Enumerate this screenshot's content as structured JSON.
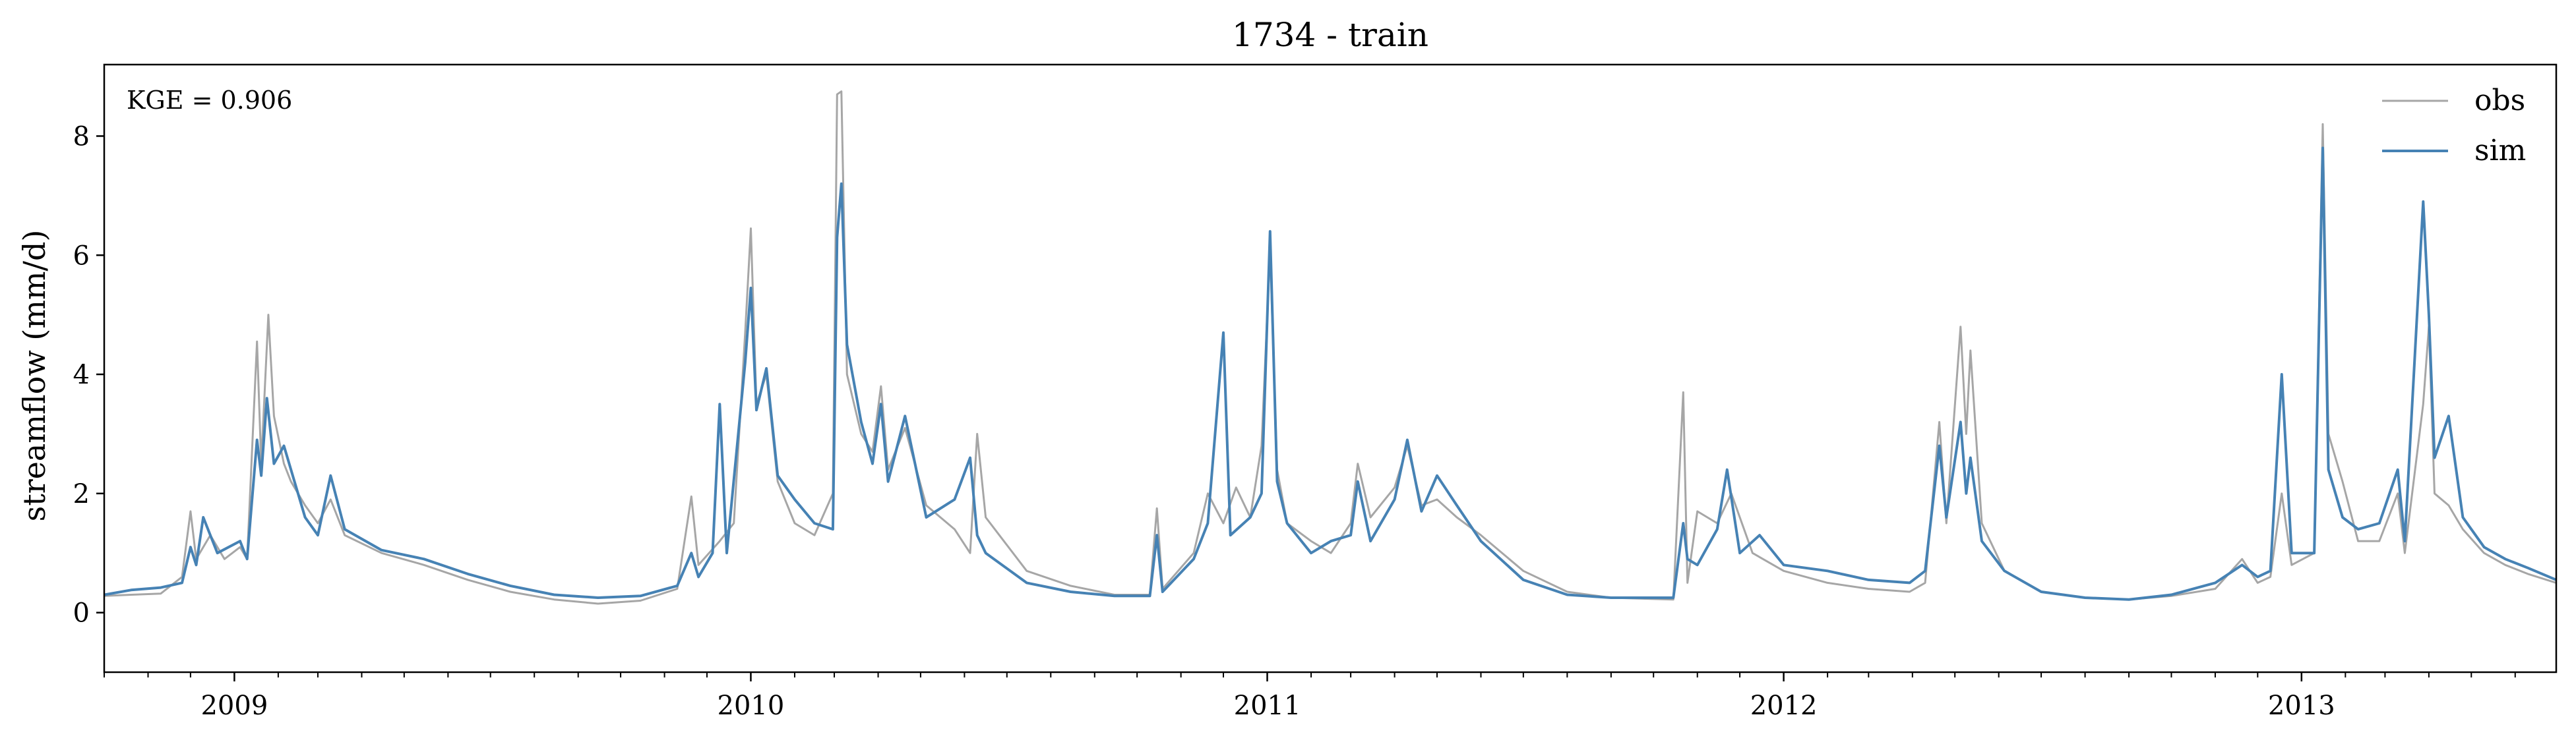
{
  "chart_data": {
    "type": "line",
    "title": "1734 - train",
    "xlabel": "",
    "ylabel": "streamflow (mm/d)",
    "annotation": "KGE = 0.906",
    "xlim": [
      "2008-10-01",
      "2013-06-30"
    ],
    "ylim": [
      -1,
      9.2
    ],
    "yticks": [
      0,
      2,
      4,
      6,
      8
    ],
    "xtick_labels": [
      {
        "date": "2009-01-01",
        "label": "2009"
      },
      {
        "date": "2010-01-01",
        "label": "2010"
      },
      {
        "date": "2011-01-01",
        "label": "2011"
      },
      {
        "date": "2012-01-01",
        "label": "2012"
      },
      {
        "date": "2013-01-01",
        "label": "2013"
      }
    ],
    "grid": false,
    "legend_position": "top-right",
    "series": [
      {
        "name": "obs",
        "color": "#a6a6a6",
        "points": [
          [
            "2008-10-01",
            0.28
          ],
          [
            "2008-10-20",
            0.3
          ],
          [
            "2008-11-10",
            0.32
          ],
          [
            "2008-11-25",
            0.6
          ],
          [
            "2008-12-01",
            1.7
          ],
          [
            "2008-12-05",
            0.9
          ],
          [
            "2008-12-15",
            1.3
          ],
          [
            "2008-12-25",
            0.9
          ],
          [
            "2009-01-05",
            1.1
          ],
          [
            "2009-01-10",
            0.9
          ],
          [
            "2009-01-17",
            4.55
          ],
          [
            "2009-01-20",
            2.5
          ],
          [
            "2009-01-25",
            5.0
          ],
          [
            "2009-01-29",
            3.3
          ],
          [
            "2009-02-05",
            2.5
          ],
          [
            "2009-02-10",
            2.2
          ],
          [
            "2009-02-20",
            1.8
          ],
          [
            "2009-03-01",
            1.5
          ],
          [
            "2009-03-10",
            1.9
          ],
          [
            "2009-03-20",
            1.3
          ],
          [
            "2009-04-15",
            1.0
          ],
          [
            "2009-05-15",
            0.8
          ],
          [
            "2009-06-15",
            0.55
          ],
          [
            "2009-07-15",
            0.35
          ],
          [
            "2009-08-15",
            0.22
          ],
          [
            "2009-09-15",
            0.15
          ],
          [
            "2009-10-15",
            0.2
          ],
          [
            "2009-11-10",
            0.4
          ],
          [
            "2009-11-20",
            1.95
          ],
          [
            "2009-11-25",
            0.8
          ],
          [
            "2009-12-10",
            1.2
          ],
          [
            "2009-12-20",
            1.5
          ],
          [
            "2009-12-28",
            4.7
          ],
          [
            "2010-01-01",
            6.45
          ],
          [
            "2010-01-05",
            3.5
          ],
          [
            "2010-01-12",
            4.0
          ],
          [
            "2010-01-20",
            2.2
          ],
          [
            "2010-02-01",
            1.5
          ],
          [
            "2010-02-15",
            1.3
          ],
          [
            "2010-02-28",
            2.0
          ],
          [
            "2010-03-03",
            8.7
          ],
          [
            "2010-03-06",
            8.75
          ],
          [
            "2010-03-10",
            4.0
          ],
          [
            "2010-03-20",
            3.0
          ],
          [
            "2010-03-28",
            2.7
          ],
          [
            "2010-04-03",
            3.8
          ],
          [
            "2010-04-08",
            2.4
          ],
          [
            "2010-04-20",
            3.1
          ],
          [
            "2010-05-05",
            1.8
          ],
          [
            "2010-05-25",
            1.4
          ],
          [
            "2010-06-05",
            1.0
          ],
          [
            "2010-06-10",
            3.0
          ],
          [
            "2010-06-16",
            1.6
          ],
          [
            "2010-07-15",
            0.7
          ],
          [
            "2010-08-15",
            0.45
          ],
          [
            "2010-09-15",
            0.3
          ],
          [
            "2010-10-10",
            0.3
          ],
          [
            "2010-10-15",
            1.75
          ],
          [
            "2010-10-19",
            0.4
          ],
          [
            "2010-11-10",
            1.0
          ],
          [
            "2010-11-20",
            2.0
          ],
          [
            "2010-12-01",
            1.5
          ],
          [
            "2010-12-10",
            2.1
          ],
          [
            "2010-12-20",
            1.6
          ],
          [
            "2010-12-28",
            2.8
          ],
          [
            "2011-01-03",
            6.1
          ],
          [
            "2011-01-08",
            2.4
          ],
          [
            "2011-01-15",
            1.5
          ],
          [
            "2011-02-01",
            1.2
          ],
          [
            "2011-02-15",
            1.0
          ],
          [
            "2011-03-01",
            1.5
          ],
          [
            "2011-03-06",
            2.5
          ],
          [
            "2011-03-15",
            1.6
          ],
          [
            "2011-04-01",
            2.1
          ],
          [
            "2011-04-10",
            2.8
          ],
          [
            "2011-04-20",
            1.8
          ],
          [
            "2011-05-01",
            1.9
          ],
          [
            "2011-05-15",
            1.6
          ],
          [
            "2011-06-01",
            1.3
          ],
          [
            "2011-07-01",
            0.7
          ],
          [
            "2011-08-01",
            0.35
          ],
          [
            "2011-09-01",
            0.25
          ],
          [
            "2011-10-15",
            0.22
          ],
          [
            "2011-10-22",
            3.7
          ],
          [
            "2011-10-25",
            0.5
          ],
          [
            "2011-11-01",
            1.7
          ],
          [
            "2011-11-15",
            1.5
          ],
          [
            "2011-11-25",
            2.0
          ],
          [
            "2011-12-10",
            1.0
          ],
          [
            "2012-01-01",
            0.7
          ],
          [
            "2012-02-01",
            0.5
          ],
          [
            "2012-03-01",
            0.4
          ],
          [
            "2012-03-30",
            0.35
          ],
          [
            "2012-04-10",
            0.5
          ],
          [
            "2012-04-20",
            3.2
          ],
          [
            "2012-04-25",
            1.5
          ],
          [
            "2012-05-05",
            4.8
          ],
          [
            "2012-05-09",
            3.0
          ],
          [
            "2012-05-12",
            4.4
          ],
          [
            "2012-05-20",
            1.5
          ],
          [
            "2012-06-05",
            0.7
          ],
          [
            "2012-07-01",
            0.35
          ],
          [
            "2012-08-01",
            0.25
          ],
          [
            "2012-09-01",
            0.22
          ],
          [
            "2012-10-01",
            0.28
          ],
          [
            "2012-11-01",
            0.4
          ],
          [
            "2012-11-20",
            0.9
          ],
          [
            "2012-12-01",
            0.5
          ],
          [
            "2012-12-10",
            0.6
          ],
          [
            "2012-12-18",
            2.0
          ],
          [
            "2012-12-25",
            0.8
          ],
          [
            "2013-01-10",
            1.0
          ],
          [
            "2013-01-16",
            8.2
          ],
          [
            "2013-01-20",
            3.0
          ],
          [
            "2013-01-30",
            2.2
          ],
          [
            "2013-02-10",
            1.2
          ],
          [
            "2013-02-25",
            1.2
          ],
          [
            "2013-03-10",
            2.0
          ],
          [
            "2013-03-15",
            1.0
          ],
          [
            "2013-03-28",
            3.5
          ],
          [
            "2013-04-01",
            4.8
          ],
          [
            "2013-04-05",
            2.0
          ],
          [
            "2013-04-15",
            1.8
          ],
          [
            "2013-04-25",
            1.4
          ],
          [
            "2013-05-10",
            1.0
          ],
          [
            "2013-05-25",
            0.8
          ],
          [
            "2013-06-10",
            0.65
          ],
          [
            "2013-06-30",
            0.5
          ]
        ]
      },
      {
        "name": "sim",
        "color": "#4682b4",
        "points": [
          [
            "2008-10-01",
            0.3
          ],
          [
            "2008-10-20",
            0.38
          ],
          [
            "2008-11-10",
            0.42
          ],
          [
            "2008-11-25",
            0.5
          ],
          [
            "2008-12-01",
            1.1
          ],
          [
            "2008-12-05",
            0.8
          ],
          [
            "2008-12-10",
            1.6
          ],
          [
            "2008-12-20",
            1.0
          ],
          [
            "2009-01-05",
            1.2
          ],
          [
            "2009-01-10",
            0.9
          ],
          [
            "2009-01-17",
            2.9
          ],
          [
            "2009-01-20",
            2.3
          ],
          [
            "2009-01-24",
            3.6
          ],
          [
            "2009-01-29",
            2.5
          ],
          [
            "2009-02-05",
            2.8
          ],
          [
            "2009-02-10",
            2.4
          ],
          [
            "2009-02-20",
            1.6
          ],
          [
            "2009-03-01",
            1.3
          ],
          [
            "2009-03-10",
            2.3
          ],
          [
            "2009-03-20",
            1.4
          ],
          [
            "2009-04-15",
            1.05
          ],
          [
            "2009-05-15",
            0.9
          ],
          [
            "2009-06-15",
            0.65
          ],
          [
            "2009-07-15",
            0.45
          ],
          [
            "2009-08-15",
            0.3
          ],
          [
            "2009-09-15",
            0.25
          ],
          [
            "2009-10-15",
            0.28
          ],
          [
            "2009-11-10",
            0.45
          ],
          [
            "2009-11-20",
            1.0
          ],
          [
            "2009-11-25",
            0.6
          ],
          [
            "2009-12-05",
            1.0
          ],
          [
            "2009-12-10",
            3.5
          ],
          [
            "2009-12-15",
            1.0
          ],
          [
            "2009-12-28",
            4.2
          ],
          [
            "2010-01-01",
            5.45
          ],
          [
            "2010-01-05",
            3.4
          ],
          [
            "2010-01-12",
            4.1
          ],
          [
            "2010-01-20",
            2.3
          ],
          [
            "2010-02-01",
            1.9
          ],
          [
            "2010-02-15",
            1.5
          ],
          [
            "2010-02-28",
            1.4
          ],
          [
            "2010-03-03",
            6.3
          ],
          [
            "2010-03-06",
            7.2
          ],
          [
            "2010-03-10",
            4.5
          ],
          [
            "2010-03-20",
            3.2
          ],
          [
            "2010-03-28",
            2.5
          ],
          [
            "2010-04-03",
            3.5
          ],
          [
            "2010-04-08",
            2.2
          ],
          [
            "2010-04-20",
            3.3
          ],
          [
            "2010-05-05",
            1.6
          ],
          [
            "2010-05-25",
            1.9
          ],
          [
            "2010-06-05",
            2.6
          ],
          [
            "2010-06-10",
            1.3
          ],
          [
            "2010-06-16",
            1.0
          ],
          [
            "2010-07-15",
            0.5
          ],
          [
            "2010-08-15",
            0.35
          ],
          [
            "2010-09-15",
            0.28
          ],
          [
            "2010-10-10",
            0.28
          ],
          [
            "2010-10-15",
            1.3
          ],
          [
            "2010-10-19",
            0.35
          ],
          [
            "2010-11-10",
            0.9
          ],
          [
            "2010-11-20",
            1.5
          ],
          [
            "2010-12-01",
            4.7
          ],
          [
            "2010-12-06",
            1.3
          ],
          [
            "2010-12-20",
            1.6
          ],
          [
            "2010-12-28",
            2.0
          ],
          [
            "2011-01-03",
            6.4
          ],
          [
            "2011-01-08",
            2.2
          ],
          [
            "2011-01-15",
            1.5
          ],
          [
            "2011-02-01",
            1.0
          ],
          [
            "2011-02-15",
            1.2
          ],
          [
            "2011-03-01",
            1.3
          ],
          [
            "2011-03-06",
            2.2
          ],
          [
            "2011-03-15",
            1.2
          ],
          [
            "2011-04-01",
            1.9
          ],
          [
            "2011-04-10",
            2.9
          ],
          [
            "2011-04-20",
            1.7
          ],
          [
            "2011-05-01",
            2.3
          ],
          [
            "2011-05-15",
            1.8
          ],
          [
            "2011-06-01",
            1.2
          ],
          [
            "2011-07-01",
            0.55
          ],
          [
            "2011-08-01",
            0.3
          ],
          [
            "2011-09-01",
            0.25
          ],
          [
            "2011-10-15",
            0.25
          ],
          [
            "2011-10-22",
            1.5
          ],
          [
            "2011-10-25",
            0.9
          ],
          [
            "2011-11-01",
            0.8
          ],
          [
            "2011-11-15",
            1.4
          ],
          [
            "2011-11-22",
            2.4
          ],
          [
            "2011-12-01",
            1.0
          ],
          [
            "2011-12-15",
            1.3
          ],
          [
            "2012-01-01",
            0.8
          ],
          [
            "2012-02-01",
            0.7
          ],
          [
            "2012-03-01",
            0.55
          ],
          [
            "2012-03-30",
            0.5
          ],
          [
            "2012-04-10",
            0.7
          ],
          [
            "2012-04-20",
            2.8
          ],
          [
            "2012-04-25",
            1.6
          ],
          [
            "2012-05-05",
            3.2
          ],
          [
            "2012-05-09",
            2.0
          ],
          [
            "2012-05-12",
            2.6
          ],
          [
            "2012-05-20",
            1.2
          ],
          [
            "2012-06-05",
            0.7
          ],
          [
            "2012-07-01",
            0.35
          ],
          [
            "2012-08-01",
            0.25
          ],
          [
            "2012-09-01",
            0.22
          ],
          [
            "2012-10-01",
            0.3
          ],
          [
            "2012-11-01",
            0.5
          ],
          [
            "2012-11-20",
            0.8
          ],
          [
            "2012-12-01",
            0.6
          ],
          [
            "2012-12-10",
            0.7
          ],
          [
            "2012-12-18",
            4.0
          ],
          [
            "2012-12-25",
            1.0
          ],
          [
            "2013-01-10",
            1.0
          ],
          [
            "2013-01-16",
            7.8
          ],
          [
            "2013-01-20",
            2.4
          ],
          [
            "2013-01-30",
            1.6
          ],
          [
            "2013-02-10",
            1.4
          ],
          [
            "2013-02-25",
            1.5
          ],
          [
            "2013-03-10",
            2.4
          ],
          [
            "2013-03-15",
            1.2
          ],
          [
            "2013-03-28",
            6.9
          ],
          [
            "2013-04-01",
            5.0
          ],
          [
            "2013-04-05",
            2.6
          ],
          [
            "2013-04-15",
            3.3
          ],
          [
            "2013-04-25",
            1.6
          ],
          [
            "2013-05-10",
            1.1
          ],
          [
            "2013-05-25",
            0.9
          ],
          [
            "2013-06-10",
            0.75
          ],
          [
            "2013-06-30",
            0.55
          ]
        ]
      }
    ]
  }
}
